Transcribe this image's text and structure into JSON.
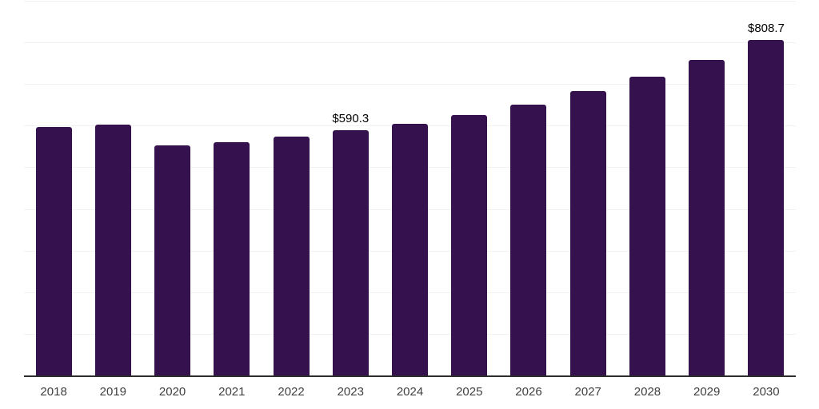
{
  "chart_data": {
    "type": "bar",
    "title": "",
    "xlabel": "",
    "ylabel": "",
    "categories": [
      "2018",
      "2019",
      "2020",
      "2021",
      "2022",
      "2023",
      "2024",
      "2025",
      "2026",
      "2027",
      "2028",
      "2029",
      "2030"
    ],
    "values": [
      598,
      605,
      555,
      563,
      575,
      590.3,
      607,
      628,
      653,
      686,
      720,
      759,
      808.7
    ],
    "annotations": [
      {
        "index": 5,
        "text": "$590.3"
      },
      {
        "index": 12,
        "text": "$808.7"
      }
    ],
    "ylim": [
      0,
      900
    ],
    "gridline_step": 100,
    "grid": "horizontal",
    "legend_position": "none",
    "y_axis_labels_visible": false
  },
  "colors": {
    "background": "#ffffff",
    "bar": "#35114d",
    "axis_line": "#2d2d2d",
    "gridline": "#f2f2f2",
    "tick_label": "#404040",
    "data_label": "#000000"
  }
}
